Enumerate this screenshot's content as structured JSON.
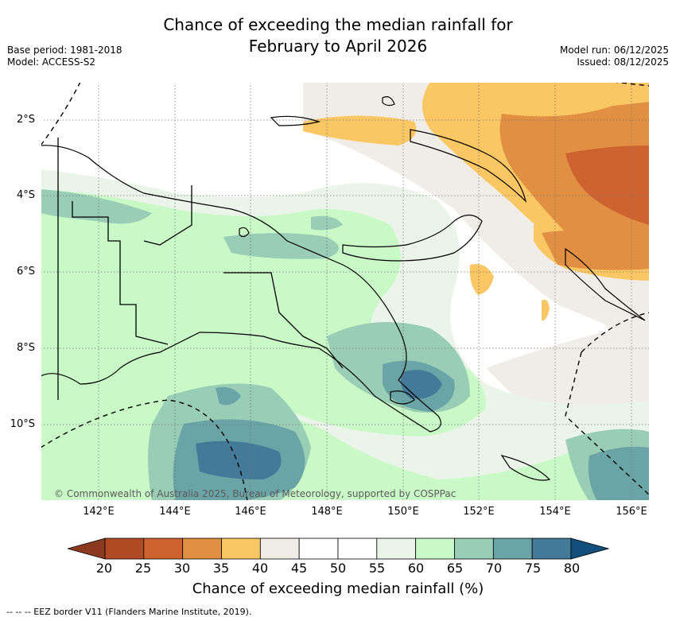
{
  "header": {
    "title_line1": "Chance of exceeding the median rainfall for",
    "title_line2": "February to April 2026",
    "base_period": "Base period: 1981-2018",
    "model": "Model: ACCESS-S2",
    "model_run": "Model run: 06/12/2025",
    "issued": "Issued: 08/12/2025"
  },
  "map": {
    "lat_labels": [
      "2°S",
      "4°S",
      "6°S",
      "8°S",
      "10°S"
    ],
    "lon_labels": [
      "142°E",
      "144°E",
      "146°E",
      "148°E",
      "150°E",
      "152°E",
      "154°E",
      "156°E"
    ],
    "copyright": "© Commonwealth of Australia 2025, Bureau of Meteorology, supported by COSPPac"
  },
  "colorbar": {
    "labels": [
      "20",
      "25",
      "30",
      "35",
      "40",
      "45",
      "50",
      "55",
      "60",
      "65",
      "70",
      "75",
      "80"
    ],
    "colors": [
      "#8b3a1f",
      "#b04a24",
      "#cd6331",
      "#e08f43",
      "#fbc765",
      "#f0ede8",
      "#ffffff",
      "#ffffff",
      "#eaf4e8",
      "#c9f9c6",
      "#99cdb5",
      "#6aa4a7",
      "#447a97",
      "#134f7d"
    ],
    "title": "Chance of exceeding median rainfall (%)"
  },
  "footer": {
    "legend_text": "--  --  -- EEZ border V11 (Flanders Marine Institute, 2019)."
  }
}
